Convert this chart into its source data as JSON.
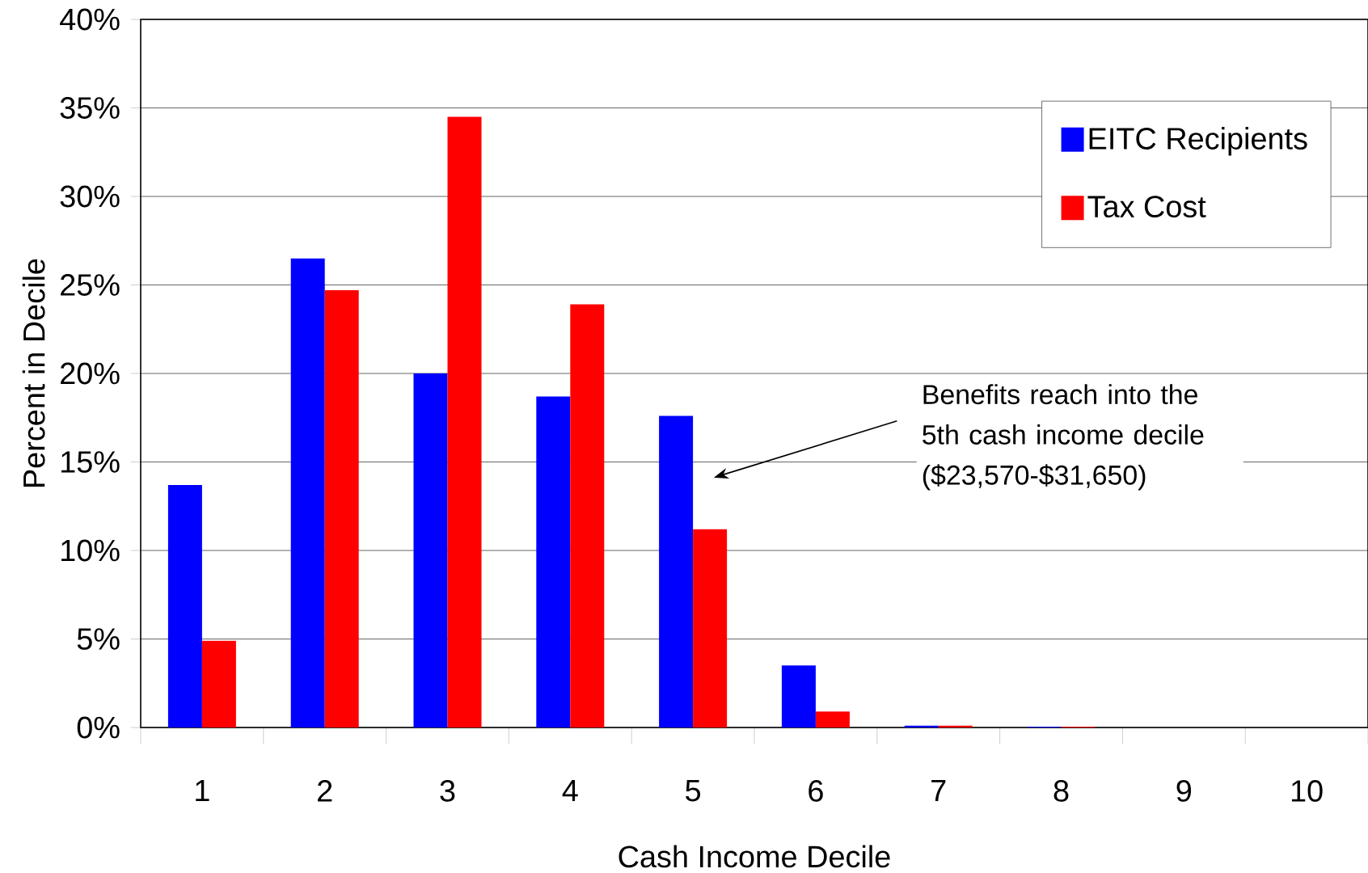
{
  "chart_data": {
    "type": "bar",
    "xlabel": "Cash Income Decile",
    "ylabel": "Percent in Decile",
    "categories": [
      "1",
      "2",
      "3",
      "4",
      "5",
      "6",
      "7",
      "8",
      "9",
      "10"
    ],
    "series": [
      {
        "name": "EITC Recipients",
        "color": "#0000ff",
        "values": [
          13.7,
          26.5,
          20.0,
          18.7,
          17.6,
          3.5,
          0.1,
          0.05,
          0,
          0
        ]
      },
      {
        "name": "Tax Cost",
        "color": "#ff0000",
        "values": [
          4.9,
          24.7,
          34.5,
          23.9,
          11.2,
          0.9,
          0.1,
          0.05,
          0,
          0
        ]
      }
    ],
    "ylim": [
      0,
      40
    ],
    "yticks": [
      {
        "value": 0,
        "label": "0%"
      },
      {
        "value": 5,
        "label": "5%"
      },
      {
        "value": 10,
        "label": "10%"
      },
      {
        "value": 15,
        "label": "15%"
      },
      {
        "value": 20,
        "label": "20%"
      },
      {
        "value": 25,
        "label": "25%"
      },
      {
        "value": 30,
        "label": "30%"
      },
      {
        "value": 35,
        "label": "35%"
      },
      {
        "value": 40,
        "label": "40%"
      }
    ],
    "grid": "y",
    "legend": "top right",
    "annotations": [
      "Benefits reach into the 5th cash income decile ($23,570-$31,650)"
    ]
  }
}
